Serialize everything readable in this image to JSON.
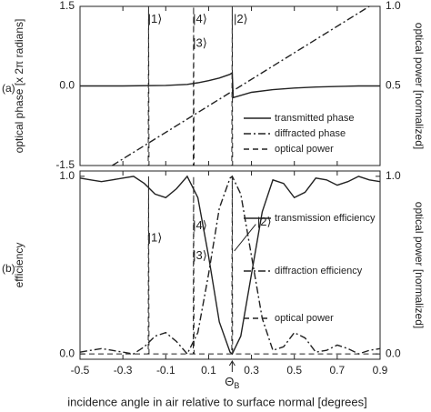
{
  "chart_data": [
    {
      "type": "line",
      "panel_label": "(a)",
      "ylabel": "optical phase [x 2π radians]",
      "y2label": "optical power [normalized]",
      "xlim": [
        -0.5,
        0.9
      ],
      "xticks": [
        -0.5,
        -0.3,
        -0.1,
        0.1,
        0.3,
        0.5,
        0.7,
        0.9
      ],
      "show_xtick_labels": false,
      "ylim": [
        -1.5,
        1.5
      ],
      "yticks": [
        1.5,
        {
          "value": 0,
          "label": "0.0"
        },
        -1.5
      ],
      "y2lim": [
        0,
        1
      ],
      "y2ticks": [
        {
          "value": 1,
          "label": "1.0"
        },
        0.5
      ],
      "legend": "lower right",
      "series": [
        {
          "name": "transmitted phase",
          "color": "#222222",
          "dash": "solid",
          "x": [
            -0.5,
            -0.3,
            -0.1,
            0,
            0.05,
            0.1,
            0.15,
            0.2,
            0.21,
            0.215,
            0.3,
            0.4,
            0.5,
            0.6,
            0.7,
            0.8,
            0.9
          ],
          "values": [
            0,
            0,
            0.01,
            0.03,
            0.06,
            0.1,
            0.15,
            0.22,
            0.25,
            -0.22,
            -0.12,
            -0.07,
            -0.04,
            -0.02,
            -0.01,
            0,
            0
          ]
        },
        {
          "name": "diffracted phase",
          "color": "#222222",
          "dash": "dashdot",
          "x": [
            -0.35,
            0.85
          ],
          "values": [
            -1.5,
            1.5
          ]
        },
        {
          "name": "optical power",
          "color": "#222222",
          "dash": "dashed",
          "axis": "y2",
          "x": [
            -0.5,
            -0.182,
            -0.18,
            -0.178,
            0.028,
            0.03,
            0.032,
            0.208,
            0.21,
            0.212,
            0.9
          ],
          "values": [
            0,
            0,
            1,
            0,
            0,
            1,
            0,
            0,
            1,
            0,
            0
          ]
        }
      ],
      "annotations": [
        "|1⟩",
        "|4⟩",
        "|3⟩",
        "|2⟩"
      ]
    },
    {
      "type": "line",
      "panel_label": "(b)",
      "ylabel": "efficiency",
      "y2label": "optical power [normalized]",
      "xlabel": "incidence angle in air relative to surface normal [degrees]",
      "xlim": [
        -0.5,
        0.9
      ],
      "xticks": [
        -0.5,
        -0.3,
        -0.1,
        0.1,
        0.3,
        0.5,
        0.7,
        0.9
      ],
      "show_xtick_labels": true,
      "ylim": [
        -0.03,
        1.03
      ],
      "yticks": [
        {
          "value": 1,
          "label": "1.0"
        },
        {
          "value": 0,
          "label": "0.0"
        }
      ],
      "y2lim": [
        -0.03,
        1.03
      ],
      "y2ticks": [
        {
          "value": 1,
          "label": "1.0"
        },
        {
          "value": 0,
          "label": "0.0"
        }
      ],
      "legend": "right",
      "series": [
        {
          "name": "transmission efficiency",
          "color": "#222222",
          "dash": "solid",
          "x": [
            -0.5,
            -0.45,
            -0.4,
            -0.35,
            -0.3,
            -0.25,
            -0.2,
            -0.15,
            -0.1,
            -0.05,
            0,
            0.05,
            0.1,
            0.15,
            0.2,
            0.21,
            0.25,
            0.3,
            0.35,
            0.4,
            0.45,
            0.5,
            0.55,
            0.6,
            0.65,
            0.7,
            0.75,
            0.8,
            0.85,
            0.9
          ],
          "values": [
            0.99,
            0.98,
            0.97,
            0.98,
            0.99,
            1,
            0.96,
            0.9,
            0.88,
            0.93,
            1,
            0.88,
            0.55,
            0.18,
            0.01,
            0,
            0.1,
            0.45,
            0.8,
            0.98,
            0.96,
            0.88,
            0.91,
            0.99,
            0.98,
            0.95,
            0.97,
            1,
            0.98,
            0.97
          ]
        },
        {
          "name": "diffraction efficiency",
          "color": "#222222",
          "dash": "dashdot",
          "x": [
            -0.5,
            -0.45,
            -0.4,
            -0.35,
            -0.3,
            -0.25,
            -0.2,
            -0.15,
            -0.1,
            -0.05,
            0,
            0.05,
            0.1,
            0.15,
            0.2,
            0.21,
            0.25,
            0.3,
            0.35,
            0.4,
            0.45,
            0.5,
            0.55,
            0.6,
            0.65,
            0.7,
            0.75,
            0.8,
            0.85,
            0.9
          ],
          "values": [
            0.01,
            0.02,
            0.03,
            0.02,
            0.01,
            0,
            0.04,
            0.1,
            0.12,
            0.07,
            0,
            0.12,
            0.45,
            0.82,
            0.99,
            1,
            0.9,
            0.55,
            0.2,
            0.02,
            0.04,
            0.12,
            0.09,
            0.01,
            0.02,
            0.05,
            0.03,
            0,
            0.02,
            0.03
          ]
        },
        {
          "name": "optical power",
          "color": "#222222",
          "dash": "dashed",
          "axis": "y2",
          "x": [
            -0.5,
            -0.182,
            -0.18,
            -0.178,
            0.028,
            0.03,
            0.032,
            0.208,
            0.21,
            0.212,
            0.9
          ],
          "values": [
            0,
            0,
            1,
            0,
            0,
            1,
            0,
            0,
            1,
            0,
            0
          ]
        }
      ],
      "annotations": [
        "|1⟩",
        "|4⟩",
        "|3⟩",
        "|2⟩"
      ],
      "marker_label": {
        "text": "Θ",
        "sub": "B"
      }
    }
  ]
}
